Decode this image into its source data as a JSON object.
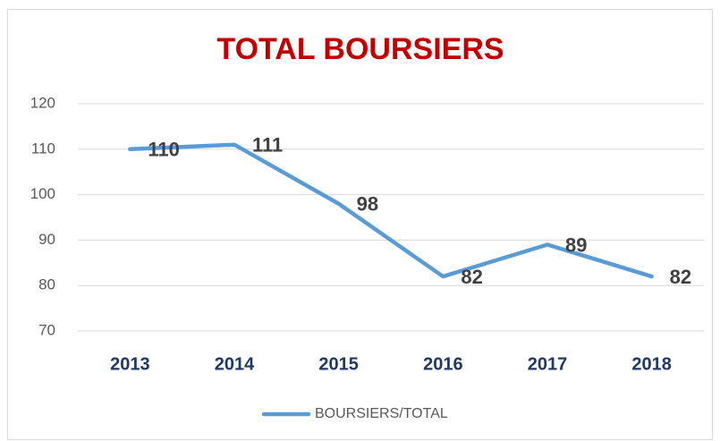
{
  "chart_data": {
    "type": "line",
    "title": "TOTAL BOURSIERS",
    "categories": [
      "2013",
      "2014",
      "2015",
      "2016",
      "2017",
      "2018"
    ],
    "series": [
      {
        "name": "BOURSIERS/TOTAL",
        "color": "#5b9bd5",
        "values": [
          110,
          111,
          98,
          82,
          89,
          82
        ]
      }
    ],
    "ylim": [
      70,
      120
    ],
    "yticks": [
      70,
      80,
      90,
      100,
      110,
      120
    ],
    "grid": true,
    "legend": "bottom"
  }
}
